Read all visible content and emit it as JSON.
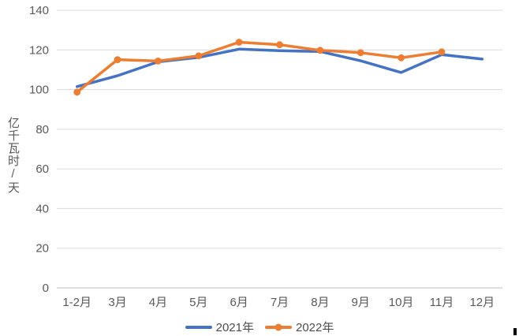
{
  "chart_data": {
    "type": "line",
    "title": "",
    "xlabel": "",
    "ylabel": "亿千瓦时/天",
    "ylim": [
      0,
      140
    ],
    "ytick_step": 20,
    "grid": true,
    "legend_position": "bottom",
    "categories": [
      "1-2月",
      "3月",
      "4月",
      "5月",
      "6月",
      "7月",
      "8月",
      "9月",
      "10月",
      "11月",
      "12月"
    ],
    "series": [
      {
        "name": "2021年",
        "color": "#4472C4",
        "marker": "none",
        "values": [
          101.5,
          107.0,
          114.0,
          116.2,
          120.4,
          119.6,
          119.2,
          114.5,
          108.6,
          117.6,
          115.4
        ]
      },
      {
        "name": "2022年",
        "color": "#ED7D31",
        "marker": "circle",
        "values": [
          98.7,
          115.1,
          114.4,
          117.0,
          123.9,
          122.6,
          119.8,
          118.6,
          116.0,
          119.0,
          null
        ]
      }
    ]
  },
  "colors": {
    "gridline": "#D9D9D9",
    "axis_line": "#BFBFBF",
    "tick_label": "#595959",
    "legend_label": "#4d4d4d",
    "background": "#FFFFFF",
    "series_2021": "#4472C4",
    "series_2022": "#ED7D31"
  }
}
